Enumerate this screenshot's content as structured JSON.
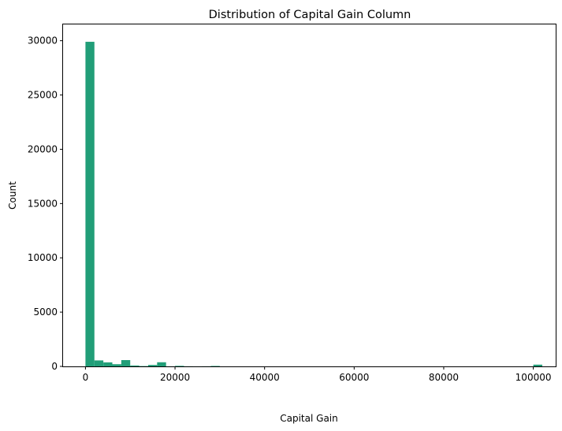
{
  "chart_data": {
    "type": "bar",
    "title": "Distribution of Capital Gain Column",
    "xlabel": "Capital Gain",
    "ylabel": "Count",
    "xlim": [
      -5000,
      105000
    ],
    "ylim": [
      0,
      31500
    ],
    "bar_color": "#219e78",
    "bin_width": 2000,
    "x_ticks": [
      {
        "value": 0,
        "label": "0"
      },
      {
        "value": 20000,
        "label": "20000"
      },
      {
        "value": 40000,
        "label": "40000"
      },
      {
        "value": 60000,
        "label": "60000"
      },
      {
        "value": 80000,
        "label": "80000"
      },
      {
        "value": 100000,
        "label": "100000"
      }
    ],
    "y_ticks": [
      {
        "value": 0,
        "label": "0"
      },
      {
        "value": 5000,
        "label": "5000"
      },
      {
        "value": 10000,
        "label": "10000"
      },
      {
        "value": 15000,
        "label": "15000"
      },
      {
        "value": 20000,
        "label": "20000"
      },
      {
        "value": 25000,
        "label": "25000"
      },
      {
        "value": 30000,
        "label": "30000"
      }
    ],
    "bins": [
      {
        "x": 0,
        "count": 29900
      },
      {
        "x": 2000,
        "count": 550
      },
      {
        "x": 4000,
        "count": 370
      },
      {
        "x": 6000,
        "count": 200
      },
      {
        "x": 8000,
        "count": 580
      },
      {
        "x": 10000,
        "count": 80
      },
      {
        "x": 12000,
        "count": 30
      },
      {
        "x": 14000,
        "count": 130
      },
      {
        "x": 16000,
        "count": 380
      },
      {
        "x": 18000,
        "count": 5
      },
      {
        "x": 20000,
        "count": 50
      },
      {
        "x": 22000,
        "count": 10
      },
      {
        "x": 24000,
        "count": 5
      },
      {
        "x": 26000,
        "count": 10
      },
      {
        "x": 28000,
        "count": 40
      },
      {
        "x": 100000,
        "count": 160
      }
    ],
    "grid": false,
    "legend": "none"
  }
}
